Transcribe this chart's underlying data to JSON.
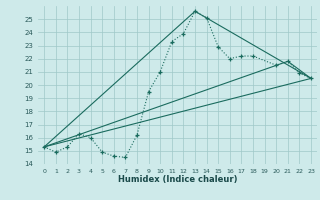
{
  "xlabel": "Humidex (Indice chaleur)",
  "bg_color": "#ceeaea",
  "grid_color": "#a0c8c8",
  "line_color": "#1a6b5e",
  "xlim": [
    -0.5,
    23.5
  ],
  "ylim": [
    14,
    26
  ],
  "yticks": [
    14,
    15,
    16,
    17,
    18,
    19,
    20,
    21,
    22,
    23,
    24,
    25
  ],
  "xticks": [
    0,
    1,
    2,
    3,
    4,
    5,
    6,
    7,
    8,
    9,
    10,
    11,
    12,
    13,
    14,
    15,
    16,
    17,
    18,
    19,
    20,
    21,
    22,
    23
  ],
  "series1_x": [
    0,
    1,
    2,
    3,
    4,
    5,
    6,
    7,
    8,
    9,
    10,
    11,
    12,
    13,
    14,
    15,
    16,
    17,
    18,
    20,
    21,
    22,
    23
  ],
  "series1_y": [
    15.3,
    14.9,
    15.3,
    16.3,
    16.0,
    14.9,
    14.6,
    14.5,
    16.2,
    19.5,
    21.0,
    23.3,
    23.9,
    25.6,
    25.1,
    22.9,
    22.0,
    22.2,
    22.2,
    21.5,
    21.8,
    20.9,
    20.5
  ],
  "series2_x": [
    0,
    23
  ],
  "series2_y": [
    15.3,
    20.5
  ],
  "series3_x": [
    0,
    13,
    23
  ],
  "series3_y": [
    15.3,
    25.6,
    20.5
  ],
  "series4_x": [
    0,
    21,
    23
  ],
  "series4_y": [
    15.3,
    21.8,
    20.5
  ]
}
